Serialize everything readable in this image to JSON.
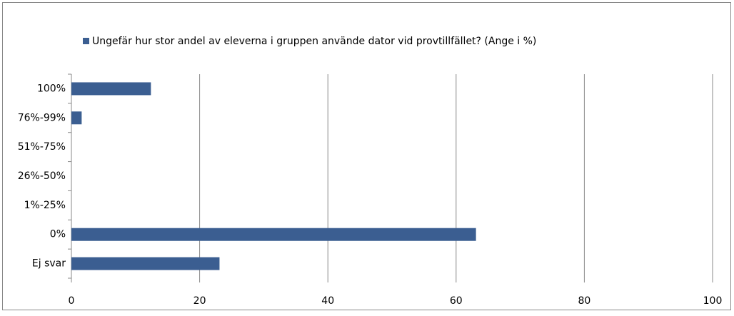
{
  "chart_data": {
    "type": "bar",
    "orientation": "horizontal",
    "legend": "top",
    "series": [
      {
        "name": "Ungefär hur stor andel av eleverna i gruppen använde dator vid provtillfället? (Ange i %)",
        "color": "#3b5e91",
        "values": [
          12.4,
          1.6,
          0,
          0,
          0,
          63.1,
          23.1
        ]
      }
    ],
    "categories": [
      "100%",
      "76%-99%",
      "51%-75%",
      "26%-50%",
      "1%-25%",
      "0%",
      "Ej svar"
    ],
    "xlim": [
      0,
      100
    ],
    "xticks": [
      0,
      20,
      40,
      60,
      80,
      100
    ],
    "grid": true
  }
}
